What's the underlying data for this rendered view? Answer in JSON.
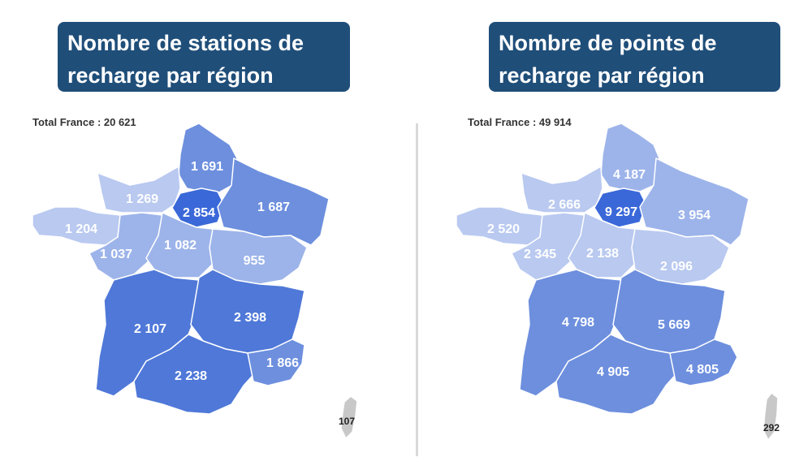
{
  "colors": {
    "title_bg": "#1f4e79",
    "idf": "#3a68d8",
    "dark": "#4f78d8",
    "mid": "#6d8fde",
    "light": "#9db4ea",
    "lighter": "#b9c9f0",
    "corsica": "#c8c8c8"
  },
  "left_map": {
    "title": "Nombre de stations de recharge par région",
    "total": "Total France : 20 621",
    "regions": {
      "hauts_de_france": "1 691",
      "normandie": "1 269",
      "ile_de_france": "2 854",
      "grand_est": "1 687",
      "bretagne": "1 204",
      "pays_de_la_loire": "1 037",
      "centre_val_de_loire": "1 082",
      "bourgogne_franche_comte": "955",
      "nouvelle_aquitaine": "2 107",
      "auvergne_rhone_alpes": "2 398",
      "occitanie": "2 238",
      "paca": "1 866",
      "corse": "107"
    }
  },
  "right_map": {
    "title": "Nombre de points de recharge par région",
    "total": "Total France : 49 914",
    "regions": {
      "hauts_de_france": "4 187",
      "normandie": "2 666",
      "ile_de_france": "9 297",
      "grand_est": "3 954",
      "bretagne": "2 520",
      "pays_de_la_loire": "2 345",
      "centre_val_de_loire": "2 138",
      "bourgogne_franche_comte": "2 096",
      "nouvelle_aquitaine": "4 798",
      "auvergne_rhone_alpes": "5 669",
      "occitanie": "4 905",
      "paca": "4 805",
      "corse": "292"
    }
  }
}
